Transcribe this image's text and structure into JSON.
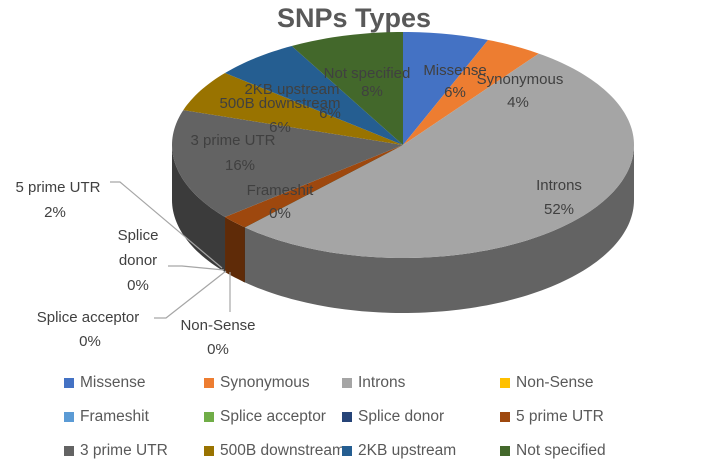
{
  "title": "SNPs Types",
  "chart_data": {
    "type": "pie",
    "style": "3d",
    "title": "SNPs Types",
    "categories": [
      "Missense",
      "Synonymous",
      "Introns",
      "Non-Sense",
      "Frameshit",
      "Splice acceptor",
      "Splice donor",
      "5 prime UTR",
      "3 prime UTR",
      "500B downstream",
      "2KB upstream",
      "Not specified"
    ],
    "values": [
      6,
      4,
      52,
      0,
      0,
      0,
      0,
      2,
      16,
      6,
      6,
      8
    ],
    "colors": [
      "#4472C4",
      "#ED7D31",
      "#A5A5A5",
      "#FFC000",
      "#5B9BD5",
      "#70AD47",
      "#264478",
      "#9E480E",
      "#636363",
      "#997300",
      "#255E91",
      "#43682B"
    ],
    "data_labels": [
      "6%",
      "4%",
      "52%",
      "0%",
      "0%",
      "0%",
      "0%",
      "2%",
      "16%",
      "6%",
      "6%",
      "8%"
    ],
    "legend_position": "bottom"
  },
  "labels": {
    "missense": {
      "name": "Missense",
      "pct": "6%"
    },
    "synonymous": {
      "name": "Synonymous",
      "pct": "4%"
    },
    "introns": {
      "name": "Introns",
      "pct": "52%"
    },
    "nonsense": {
      "name": "Non-Sense",
      "pct": "0%"
    },
    "frameshit": {
      "name": "Frameshit",
      "pct": "0%"
    },
    "splice_acceptor": {
      "name": "Splice acceptor",
      "pct": "0%"
    },
    "splice_donor_1": "Splice",
    "splice_donor_2": "donor",
    "splice_donor_pct": "0%",
    "prime5": {
      "name": "5 prime UTR",
      "pct": "2%"
    },
    "prime3": {
      "name": "3 prime UTR",
      "pct": "16%"
    },
    "down500": {
      "name": "500B downstream",
      "pct": "6%"
    },
    "up2kb": {
      "name": "2KB upstream",
      "pct": "6%"
    },
    "notspec": {
      "name": "Not specified",
      "pct": "8%"
    }
  },
  "legend": {
    "rows": [
      [
        {
          "label": "Missense",
          "color": "#4472C4"
        },
        {
          "label": "Synonymous",
          "color": "#ED7D31"
        },
        {
          "label": "Introns",
          "color": "#A5A5A5"
        },
        {
          "label": "Non-Sense",
          "color": "#FFC000"
        }
      ],
      [
        {
          "label": "Frameshit",
          "color": "#5B9BD5"
        },
        {
          "label": "Splice acceptor",
          "color": "#70AD47"
        },
        {
          "label": "Splice donor",
          "color": "#264478"
        },
        {
          "label": "5 prime UTR",
          "color": "#9E480E"
        }
      ],
      [
        {
          "label": "3 prime UTR",
          "color": "#636363"
        },
        {
          "label": "500B downstream",
          "color": "#997300"
        },
        {
          "label": "2KB upstream",
          "color": "#255E91"
        },
        {
          "label": "Not specified",
          "color": "#43682B"
        }
      ]
    ]
  }
}
